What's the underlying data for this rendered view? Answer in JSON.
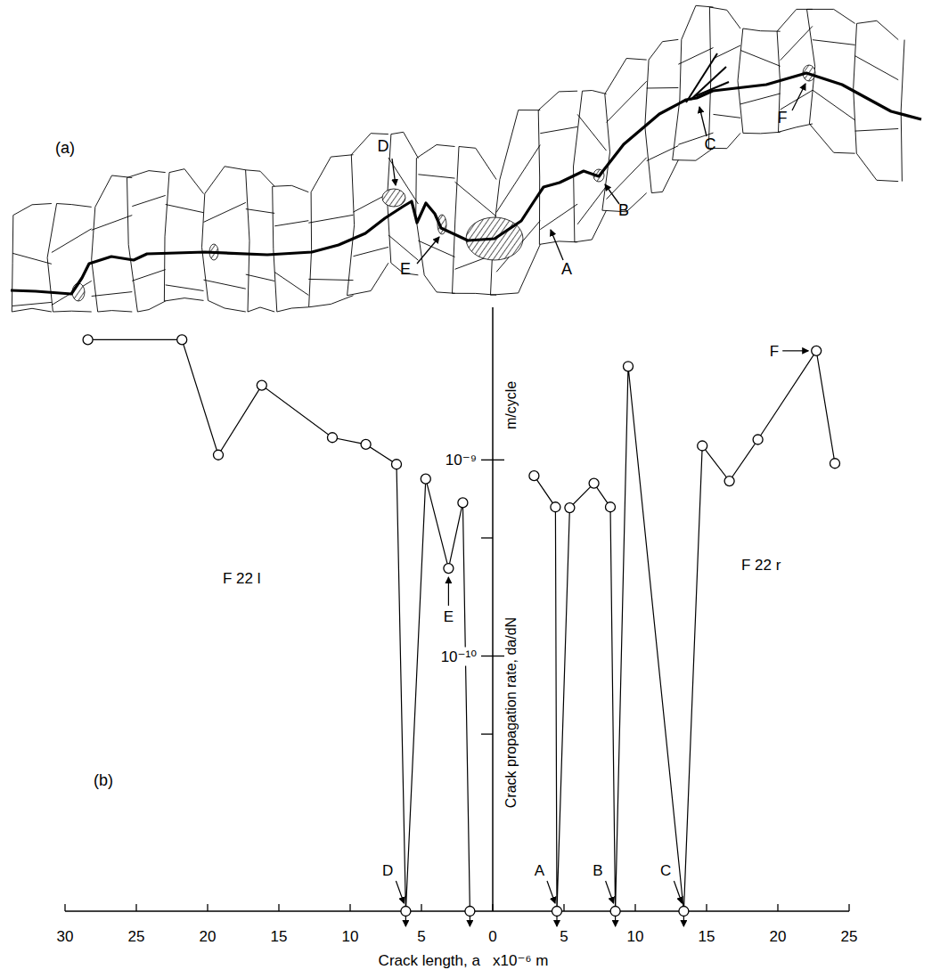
{
  "diagram": {
    "panel_label": "(a)",
    "labels": [
      "D",
      "E",
      "A",
      "B",
      "C",
      "F"
    ]
  },
  "chart_data": {
    "type": "line",
    "panel_label": "(b)",
    "x_label": "Crack length, a   x10⁻⁶ m",
    "y_label": "Crack propagation rate, da/dN",
    "y_unit": "m/cycle",
    "log": "y",
    "grid": false,
    "marker": "circle",
    "color": "#000000",
    "ylim": [
      5e-12,
      6e-09
    ],
    "yticks": [
      {
        "value": 1e-09,
        "label": "10⁻⁹"
      },
      {
        "value": 1e-10,
        "label": "10⁻¹⁰"
      }
    ],
    "minor_yticks": [
      4e-10,
      4e-11
    ],
    "series": [
      {
        "name": "F 22 l",
        "color": "#000000",
        "xlim": [
          30,
          0
        ],
        "xticks": [
          30,
          25,
          20,
          15,
          10,
          5
        ],
        "x": [
          28.4,
          21.8,
          19.25,
          16.2,
          11.25,
          8.9,
          6.75,
          6.1,
          4.7,
          3.1,
          2.1,
          1.6
        ],
        "values": [
          4.1e-09,
          4.1e-09,
          1.06e-09,
          2.4e-09,
          1.3e-09,
          1.2e-09,
          9.5e-10,
          5e-12,
          8e-10,
          2.8e-10,
          6.05e-10,
          5e-12
        ],
        "point_labels": [
          null,
          null,
          null,
          null,
          null,
          null,
          null,
          "D",
          null,
          "E",
          null,
          null
        ]
      },
      {
        "name": "F 22 r",
        "color": "#000000",
        "xlim": [
          0,
          25
        ],
        "xticks": [
          0,
          5,
          10,
          15,
          20,
          25
        ],
        "x": [
          2.9,
          4.4,
          4.5,
          5.4,
          7.1,
          8.25,
          8.6,
          9.5,
          13.4,
          14.7,
          16.6,
          18.6,
          22.7,
          24.0
        ],
        "values": [
          8.3e-10,
          5.75e-10,
          5e-12,
          5.7e-10,
          7.6e-10,
          5.75e-10,
          5e-12,
          3e-09,
          5e-12,
          1.18e-09,
          7.8e-10,
          1.27e-09,
          3.6e-09,
          9.6e-10
        ],
        "point_labels": [
          null,
          null,
          "A",
          null,
          null,
          null,
          "B",
          null,
          "C",
          null,
          null,
          null,
          "F",
          null
        ]
      }
    ]
  }
}
